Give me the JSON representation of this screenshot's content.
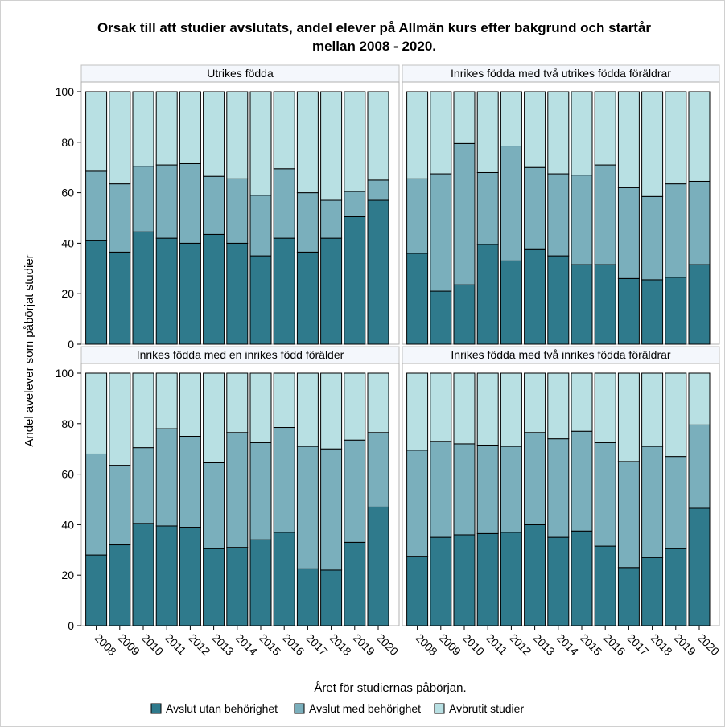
{
  "chart_data": {
    "type": "bar",
    "stacked": true,
    "title": "Orsak till att studier avslutats, andel elever på Allmän kurs efter bakgrund och startår mellan 2008 - 2020.",
    "xlabel": "Året för studiernas påbörjan.",
    "ylabel": "Andel avelever som påbörjat studier",
    "ylim": [
      0,
      100
    ],
    "yticks": [
      0,
      20,
      40,
      60,
      80,
      100
    ],
    "categories": [
      "2008",
      "2009",
      "2010",
      "2011",
      "2012",
      "2013",
      "2014",
      "2015",
      "2016",
      "2017",
      "2018",
      "2019",
      "2020"
    ],
    "legend": {
      "position": "bottom",
      "items": [
        "Avslut utan behörighet",
        "Avslut med behörighet",
        "Avbrutit studier"
      ]
    },
    "colors": {
      "Avslut utan behörighet": "#2f7a8c",
      "Avslut med behörighet": "#7aafbc",
      "Avbrutit studier": "#b8e0e3"
    },
    "panels": [
      {
        "title": "Utrikes födda",
        "series": [
          {
            "name": "Avslut utan behörighet",
            "values": [
              41,
              36.5,
              44.5,
              42,
              40,
              43.5,
              40,
              35,
              42,
              36.5,
              42,
              50.5,
              57
            ]
          },
          {
            "name": "Avslut med behörighet",
            "values": [
              27.5,
              27,
              26,
              29,
              31.5,
              23,
              25.5,
              24,
              27.5,
              23.5,
              15,
              10,
              8
            ]
          },
          {
            "name": "Avbrutit studier",
            "values": [
              31.5,
              36.5,
              29.5,
              29,
              28.5,
              33.5,
              34.5,
              41,
              30.5,
              40,
              43,
              39.5,
              35
            ]
          }
        ]
      },
      {
        "title": "Inrikes födda med två utrikes födda föräldrar",
        "series": [
          {
            "name": "Avslut utan behörighet",
            "values": [
              36,
              21,
              23.5,
              39.5,
              33,
              37.5,
              35,
              31.5,
              31.5,
              26,
              25.5,
              26.5,
              31.5
            ]
          },
          {
            "name": "Avslut med behörighet",
            "values": [
              29.5,
              46.5,
              56,
              28.5,
              45.5,
              32.5,
              32.5,
              35.5,
              39.5,
              36,
              33,
              37,
              33
            ]
          },
          {
            "name": "Avbrutit studier",
            "values": [
              34.5,
              32.5,
              20.5,
              32,
              21.5,
              30,
              32.5,
              33,
              29,
              38,
              41.5,
              36.5,
              35.5
            ]
          }
        ]
      },
      {
        "title": "Inrikes födda med en inrikes född förälder",
        "series": [
          {
            "name": "Avslut utan behörighet",
            "values": [
              28,
              32,
              40.5,
              39.5,
              39,
              30.5,
              31,
              34,
              37,
              22.5,
              22,
              33,
              47
            ]
          },
          {
            "name": "Avslut med behörighet",
            "values": [
              40,
              31.5,
              30,
              38.5,
              36,
              34,
              45.5,
              38.5,
              41.5,
              48.5,
              48,
              40.5,
              29.5
            ]
          },
          {
            "name": "Avbrutit studier",
            "values": [
              32,
              36.5,
              29.5,
              22,
              25,
              35.5,
              23.5,
              27.5,
              21.5,
              29,
              30,
              26.5,
              23.5
            ]
          }
        ]
      },
      {
        "title": "Inrikes födda med två inrikes födda föräldrar",
        "series": [
          {
            "name": "Avslut utan behörighet",
            "values": [
              27.5,
              35,
              36,
              36.5,
              37,
              40,
              35,
              37.5,
              31.5,
              23,
              27,
              30.5,
              46.5
            ]
          },
          {
            "name": "Avslut med behörighet",
            "values": [
              42,
              38,
              36,
              35,
              34,
              36.5,
              39,
              39.5,
              41,
              42,
              44,
              36.5,
              33
            ]
          },
          {
            "name": "Avbrutit studier",
            "values": [
              30.5,
              27,
              28,
              28.5,
              29,
              23.5,
              26,
              23,
              27.5,
              35,
              29,
              33,
              20.5
            ]
          }
        ]
      }
    ]
  }
}
